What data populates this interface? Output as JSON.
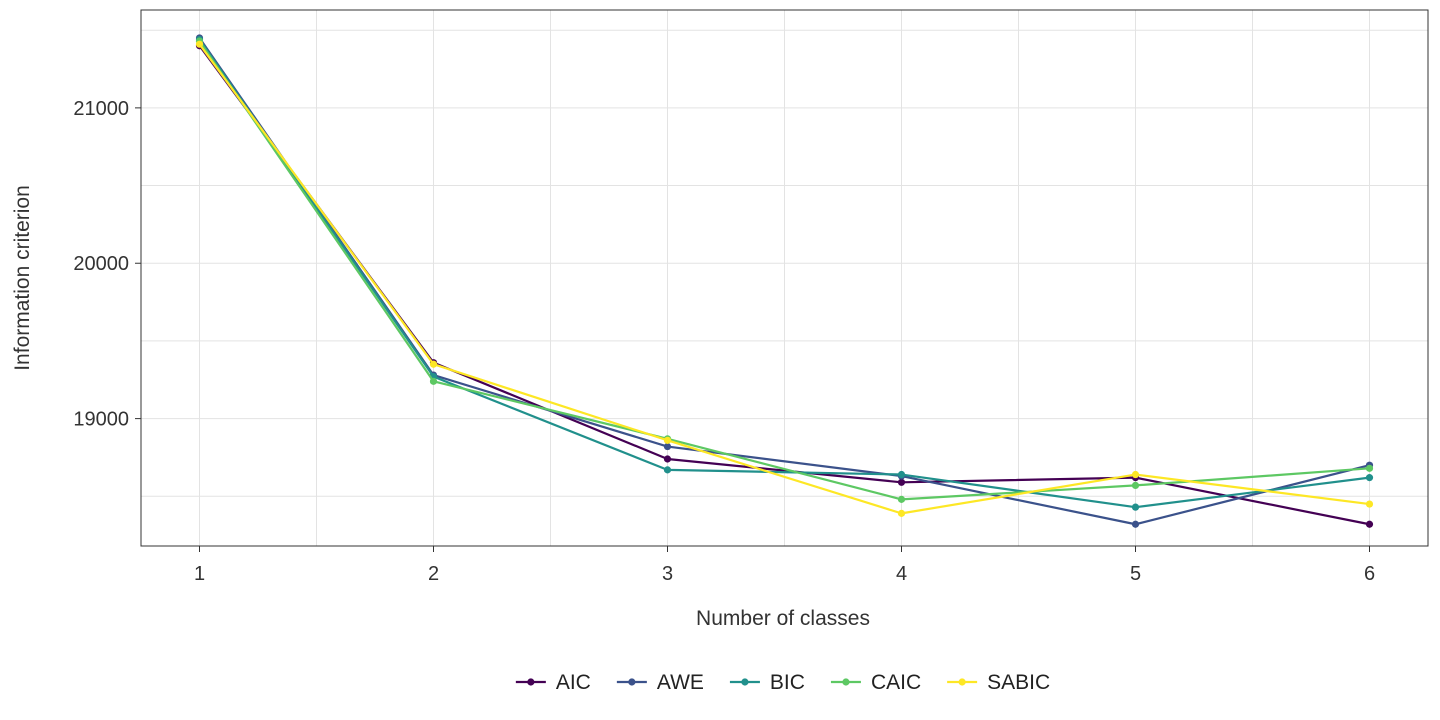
{
  "chart_data": {
    "type": "line",
    "title": "",
    "xlabel": "Number of classes",
    "ylabel": "Information criterion",
    "x": [
      1,
      2,
      3,
      4,
      5,
      6
    ],
    "xlim": [
      0.75,
      6.25
    ],
    "ylim": [
      18180,
      21630
    ],
    "x_ticks": [
      1,
      2,
      3,
      4,
      5,
      6
    ],
    "y_ticks": [
      19000,
      20000,
      21000
    ],
    "grid": true,
    "legend_position": "bottom",
    "series": [
      {
        "name": "AIC",
        "color": "#440154",
        "values": [
          21400,
          19360,
          18740,
          18590,
          18620,
          18320
        ]
      },
      {
        "name": "AWE",
        "color": "#3B528B",
        "values": [
          21450,
          19280,
          18820,
          18630,
          18320,
          18700
        ]
      },
      {
        "name": "BIC",
        "color": "#21908C",
        "values": [
          21440,
          19270,
          18670,
          18640,
          18430,
          18620
        ]
      },
      {
        "name": "CAIC",
        "color": "#5DC863",
        "values": [
          21430,
          19240,
          18870,
          18480,
          18570,
          18680
        ]
      },
      {
        "name": "SABIC",
        "color": "#FDE725",
        "values": [
          21410,
          19350,
          18860,
          18390,
          18640,
          18450
        ]
      }
    ]
  }
}
